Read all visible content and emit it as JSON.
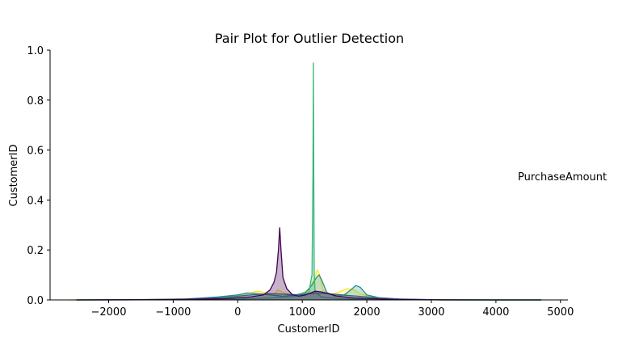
{
  "chart_data": {
    "type": "area",
    "title": "Pair Plot for Outlier Detection",
    "xlabel": "CustomerID",
    "ylabel": "CustomerID",
    "xlim": [
      -2800,
      5100
    ],
    "ylim": [
      0,
      1.0
    ],
    "xticks": [
      -2000,
      -1000,
      0,
      1000,
      2000,
      3000,
      4000,
      5000
    ],
    "xtick_labels": [
      "−2000",
      "−1000",
      "0",
      "1000",
      "2000",
      "3000",
      "4000",
      "5000"
    ],
    "yticks": [
      0.0,
      0.2,
      0.4,
      0.6,
      0.8,
      1.0
    ],
    "ytick_labels": [
      "0.0",
      "0.2",
      "0.4",
      "0.6",
      "0.8",
      "1.0"
    ],
    "grid": false,
    "legend_title": "PurchaseAmount",
    "legend_position": "right",
    "series": [
      {
        "color": "#fde725",
        "fill_opacity": 0.25,
        "x": [
          -2600,
          -1500,
          -500,
          0,
          150,
          300,
          420,
          550,
          620,
          700,
          900,
          1100,
          1180,
          1230,
          1270,
          1320,
          1420,
          1550,
          1700,
          1800,
          1900,
          2100,
          2400,
          3000,
          4000,
          4700
        ],
        "y": [
          0.0,
          0.001,
          0.006,
          0.015,
          0.025,
          0.035,
          0.03,
          0.02,
          0.04,
          0.03,
          0.015,
          0.04,
          0.08,
          0.12,
          0.1,
          0.04,
          0.02,
          0.03,
          0.045,
          0.04,
          0.025,
          0.008,
          0.002,
          0.0,
          0.0,
          0.0
        ]
      },
      {
        "color": "#21918c",
        "fill_opacity": 0.25,
        "x": [
          -2500,
          -1500,
          -800,
          -300,
          0,
          150,
          300,
          500,
          700,
          900,
          1050,
          1150,
          1220,
          1260,
          1300,
          1380,
          1500,
          1650,
          1750,
          1830,
          1900,
          2000,
          2200,
          2500,
          3200,
          4000,
          4700
        ],
        "y": [
          0.0,
          0.001,
          0.004,
          0.012,
          0.02,
          0.028,
          0.025,
          0.02,
          0.015,
          0.02,
          0.03,
          0.06,
          0.09,
          0.1,
          0.08,
          0.03,
          0.015,
          0.02,
          0.04,
          0.058,
          0.05,
          0.02,
          0.008,
          0.002,
          0.0,
          0.0,
          0.0
        ]
      },
      {
        "color": "#35b779",
        "fill_opacity": 0.25,
        "x": [
          -2500,
          -1000,
          0,
          500,
          900,
          1100,
          1150,
          1165,
          1172,
          1178,
          1185,
          1200,
          1300,
          1600,
          2200,
          3500,
          4700
        ],
        "y": [
          0.0,
          0.001,
          0.003,
          0.008,
          0.015,
          0.03,
          0.1,
          0.5,
          0.95,
          0.5,
          0.1,
          0.03,
          0.012,
          0.005,
          0.002,
          0.0,
          0.0
        ]
      },
      {
        "color": "#31688e",
        "fill_opacity": 0.25,
        "x": [
          -2500,
          -1500,
          -800,
          -200,
          200,
          500,
          800,
          1000,
          1200,
          1400,
          1700,
          2100,
          2500,
          3000,
          4000,
          4700
        ],
        "y": [
          0.0,
          0.001,
          0.003,
          0.01,
          0.02,
          0.025,
          0.022,
          0.02,
          0.028,
          0.025,
          0.018,
          0.01,
          0.004,
          0.001,
          0.0,
          0.0
        ]
      },
      {
        "color": "#440154",
        "fill_opacity": 0.3,
        "x": [
          -2500,
          -1000,
          -200,
          200,
          400,
          500,
          560,
          600,
          630,
          650,
          670,
          700,
          760,
          850,
          950,
          1050,
          1150,
          1200,
          1300,
          1400,
          1550,
          1800,
          2400,
          3200,
          4700
        ],
        "y": [
          0.0,
          0.001,
          0.005,
          0.012,
          0.02,
          0.04,
          0.07,
          0.11,
          0.2,
          0.29,
          0.2,
          0.09,
          0.045,
          0.02,
          0.015,
          0.02,
          0.03,
          0.035,
          0.032,
          0.025,
          0.015,
          0.008,
          0.002,
          0.0,
          0.0
        ]
      }
    ]
  }
}
